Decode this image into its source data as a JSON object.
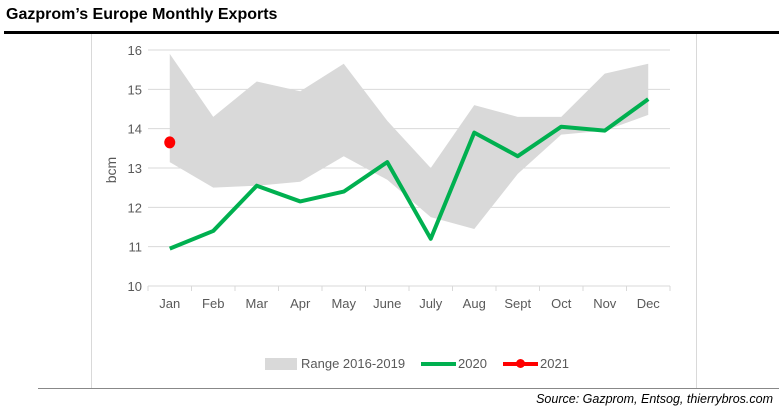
{
  "title": "Gazprom’s Europe Monthly Exports",
  "source": "Source: Gazprom, Entsog, thierrybros.com",
  "chart_data": {
    "type": "line",
    "title": "Gazprom’s Europe Monthly Exports",
    "xlabel": "",
    "ylabel": "bcm",
    "ylim": [
      10,
      16
    ],
    "yticks": [
      "10",
      "11",
      "12",
      "13",
      "14",
      "15",
      "16"
    ],
    "grid": true,
    "legend_position": "bottom",
    "categories": [
      "Jan",
      "Feb",
      "Mar",
      "Apr",
      "May",
      "June",
      "July",
      "Aug",
      "Sept",
      "Oct",
      "Nov",
      "Dec"
    ],
    "range": {
      "name": "Range 2016-2019",
      "color": "#d9d9d9",
      "upper": [
        15.9,
        14.3,
        15.2,
        14.95,
        15.65,
        14.2,
        13.0,
        14.6,
        14.3,
        14.3,
        15.4,
        15.65
      ],
      "lower": [
        13.15,
        12.5,
        12.55,
        12.65,
        13.3,
        12.7,
        11.75,
        11.45,
        12.85,
        13.85,
        13.95,
        14.35
      ]
    },
    "series": [
      {
        "name": "2020",
        "color": "#00b050",
        "values": [
          10.95,
          11.4,
          12.55,
          12.15,
          12.4,
          13.15,
          11.2,
          13.9,
          13.3,
          14.05,
          13.95,
          14.75
        ]
      },
      {
        "name": "2021",
        "color": "#ff0000",
        "values": [
          13.65,
          null,
          null,
          null,
          null,
          null,
          null,
          null,
          null,
          null,
          null,
          null
        ]
      }
    ]
  }
}
